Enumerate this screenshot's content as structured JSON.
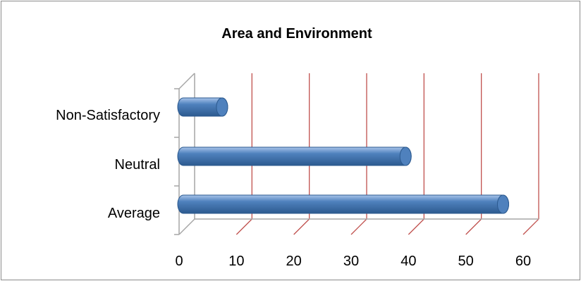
{
  "chart_data": {
    "type": "bar",
    "orientation": "horizontal",
    "style": "3d-cylinder",
    "title": "Area and Environment",
    "categories": [
      "Non-Satisfactory",
      "Neutral",
      "Average"
    ],
    "values": [
      7,
      39,
      56
    ],
    "xlim": [
      0,
      60
    ],
    "xticks": [
      "0",
      "10",
      "20",
      "30",
      "40",
      "50",
      "60"
    ],
    "grid": true,
    "legend": "none",
    "colors": {
      "bar": "#4f81bd",
      "bar_dark": "#2c5a8f",
      "bar_light": "#a8c4ea",
      "gridline": "#c0504d",
      "axis": "#a6a6a6",
      "border": "#8c8c8c"
    }
  }
}
